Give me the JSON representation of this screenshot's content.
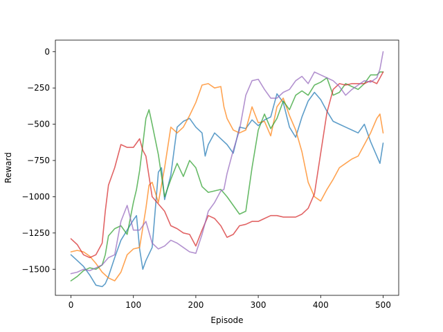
{
  "chart_data": {
    "type": "line",
    "title": "",
    "xlabel": "Episode",
    "ylabel": "Reward",
    "xlim": [
      -25,
      525
    ],
    "ylim": [
      -1680,
      80
    ],
    "xticks": [
      0,
      100,
      200,
      300,
      400,
      500
    ],
    "yticks": [
      0,
      -250,
      -500,
      -750,
      -1000,
      -1250,
      -1500
    ],
    "grid": false,
    "legend": "none",
    "series": [
      {
        "color": "#1f77b4",
        "x": [
          0,
          10,
          20,
          30,
          40,
          50,
          55,
          60,
          70,
          80,
          90,
          100,
          105,
          110,
          115,
          120,
          130,
          140,
          145,
          150,
          160,
          170,
          180,
          190,
          200,
          210,
          215,
          220,
          230,
          240,
          250,
          260,
          270,
          280,
          290,
          300,
          310,
          320,
          330,
          340,
          350,
          360,
          370,
          380,
          390,
          400,
          410,
          420,
          430,
          440,
          450,
          460,
          470,
          480,
          490,
          495,
          500
        ],
        "y": [
          -1400,
          -1440,
          -1480,
          -1540,
          -1610,
          -1620,
          -1600,
          -1550,
          -1420,
          -1300,
          -1230,
          -1160,
          -1130,
          -1360,
          -1500,
          -1440,
          -1350,
          -830,
          -800,
          -1020,
          -850,
          -520,
          -480,
          -460,
          -520,
          -560,
          -720,
          -640,
          -560,
          -600,
          -640,
          -700,
          -520,
          -530,
          -470,
          -510,
          -470,
          -450,
          -290,
          -350,
          -520,
          -590,
          -450,
          -340,
          -280,
          -330,
          -410,
          -480,
          -500,
          -520,
          -540,
          -560,
          -500,
          -620,
          -720,
          -770,
          -630
        ]
      },
      {
        "color": "#ff7f0e",
        "x": [
          0,
          10,
          20,
          30,
          40,
          50,
          60,
          70,
          80,
          90,
          100,
          110,
          120,
          125,
          130,
          140,
          150,
          160,
          170,
          180,
          190,
          200,
          210,
          220,
          230,
          240,
          245,
          250,
          260,
          270,
          280,
          290,
          300,
          310,
          320,
          330,
          340,
          350,
          360,
          370,
          380,
          390,
          400,
          410,
          420,
          430,
          440,
          450,
          460,
          470,
          480,
          490,
          495,
          500
        ],
        "y": [
          -1380,
          -1370,
          -1380,
          -1410,
          -1460,
          -1520,
          -1560,
          -1580,
          -1520,
          -1400,
          -1360,
          -1350,
          -1080,
          -920,
          -900,
          -1040,
          -800,
          -520,
          -560,
          -520,
          -440,
          -350,
          -230,
          -220,
          -250,
          -240,
          -380,
          -460,
          -540,
          -560,
          -540,
          -380,
          -490,
          -480,
          -580,
          -380,
          -320,
          -440,
          -540,
          -690,
          -900,
          -1000,
          -1030,
          -950,
          -880,
          -800,
          -770,
          -740,
          -720,
          -640,
          -560,
          -460,
          -430,
          -560
        ]
      },
      {
        "color": "#2ca02c",
        "x": [
          0,
          10,
          20,
          30,
          40,
          50,
          55,
          60,
          70,
          80,
          90,
          100,
          105,
          110,
          115,
          120,
          125,
          130,
          140,
          150,
          160,
          170,
          180,
          190,
          200,
          210,
          220,
          230,
          240,
          250,
          260,
          270,
          280,
          290,
          300,
          310,
          320,
          330,
          340,
          350,
          360,
          370,
          380,
          390,
          400,
          410,
          420,
          430,
          440,
          450,
          460,
          470,
          480,
          490,
          495,
          500
        ],
        "y": [
          -1580,
          -1550,
          -1510,
          -1490,
          -1500,
          -1470,
          -1400,
          -1270,
          -1220,
          -1200,
          -1260,
          -1040,
          -950,
          -820,
          -640,
          -460,
          -400,
          -500,
          -710,
          -1000,
          -880,
          -770,
          -860,
          -750,
          -800,
          -930,
          -970,
          -960,
          -950,
          -1000,
          -1060,
          -1120,
          -1100,
          -800,
          -540,
          -430,
          -530,
          -460,
          -340,
          -400,
          -300,
          -270,
          -300,
          -230,
          -210,
          -180,
          -300,
          -280,
          -220,
          -240,
          -260,
          -220,
          -160,
          -160,
          -140,
          -140
        ]
      },
      {
        "color": "#d62728",
        "x": [
          0,
          10,
          20,
          30,
          40,
          50,
          55,
          60,
          65,
          70,
          80,
          90,
          100,
          110,
          115,
          120,
          130,
          140,
          150,
          160,
          170,
          180,
          190,
          200,
          210,
          220,
          230,
          240,
          250,
          260,
          270,
          280,
          290,
          300,
          310,
          320,
          330,
          340,
          350,
          360,
          370,
          380,
          390,
          400,
          405,
          410,
          420,
          430,
          440,
          450,
          460,
          470,
          480,
          490,
          500
        ],
        "y": [
          -1290,
          -1330,
          -1400,
          -1420,
          -1400,
          -1320,
          -1100,
          -920,
          -860,
          -800,
          -640,
          -660,
          -660,
          -600,
          -680,
          -720,
          -1000,
          -1050,
          -1100,
          -1200,
          -1220,
          -1250,
          -1260,
          -1340,
          -1230,
          -1130,
          -1150,
          -1200,
          -1280,
          -1260,
          -1200,
          -1190,
          -1170,
          -1170,
          -1150,
          -1130,
          -1130,
          -1140,
          -1140,
          -1140,
          -1120,
          -1080,
          -980,
          -700,
          -560,
          -420,
          -260,
          -220,
          -230,
          -220,
          -220,
          -220,
          -200,
          -220,
          -140
        ]
      },
      {
        "color": "#9467bd",
        "x": [
          0,
          10,
          20,
          30,
          40,
          50,
          60,
          70,
          80,
          90,
          100,
          110,
          120,
          130,
          140,
          150,
          160,
          170,
          180,
          190,
          200,
          210,
          220,
          230,
          240,
          245,
          250,
          260,
          270,
          280,
          290,
          300,
          310,
          320,
          330,
          340,
          350,
          360,
          370,
          380,
          390,
          400,
          410,
          420,
          430,
          440,
          450,
          460,
          470,
          480,
          490,
          495,
          500
        ],
        "y": [
          -1530,
          -1520,
          -1500,
          -1510,
          -1490,
          -1470,
          -1420,
          -1400,
          -1170,
          -1060,
          -1230,
          -1230,
          -1170,
          -1320,
          -1360,
          -1340,
          -1300,
          -1320,
          -1350,
          -1380,
          -1390,
          -1260,
          -1100,
          -1040,
          -960,
          -950,
          -840,
          -680,
          -540,
          -300,
          -200,
          -190,
          -260,
          -320,
          -320,
          -280,
          -260,
          -200,
          -170,
          -220,
          -140,
          -160,
          -180,
          -200,
          -240,
          -300,
          -260,
          -230,
          -200,
          -210,
          -180,
          -120,
          0
        ]
      }
    ]
  }
}
